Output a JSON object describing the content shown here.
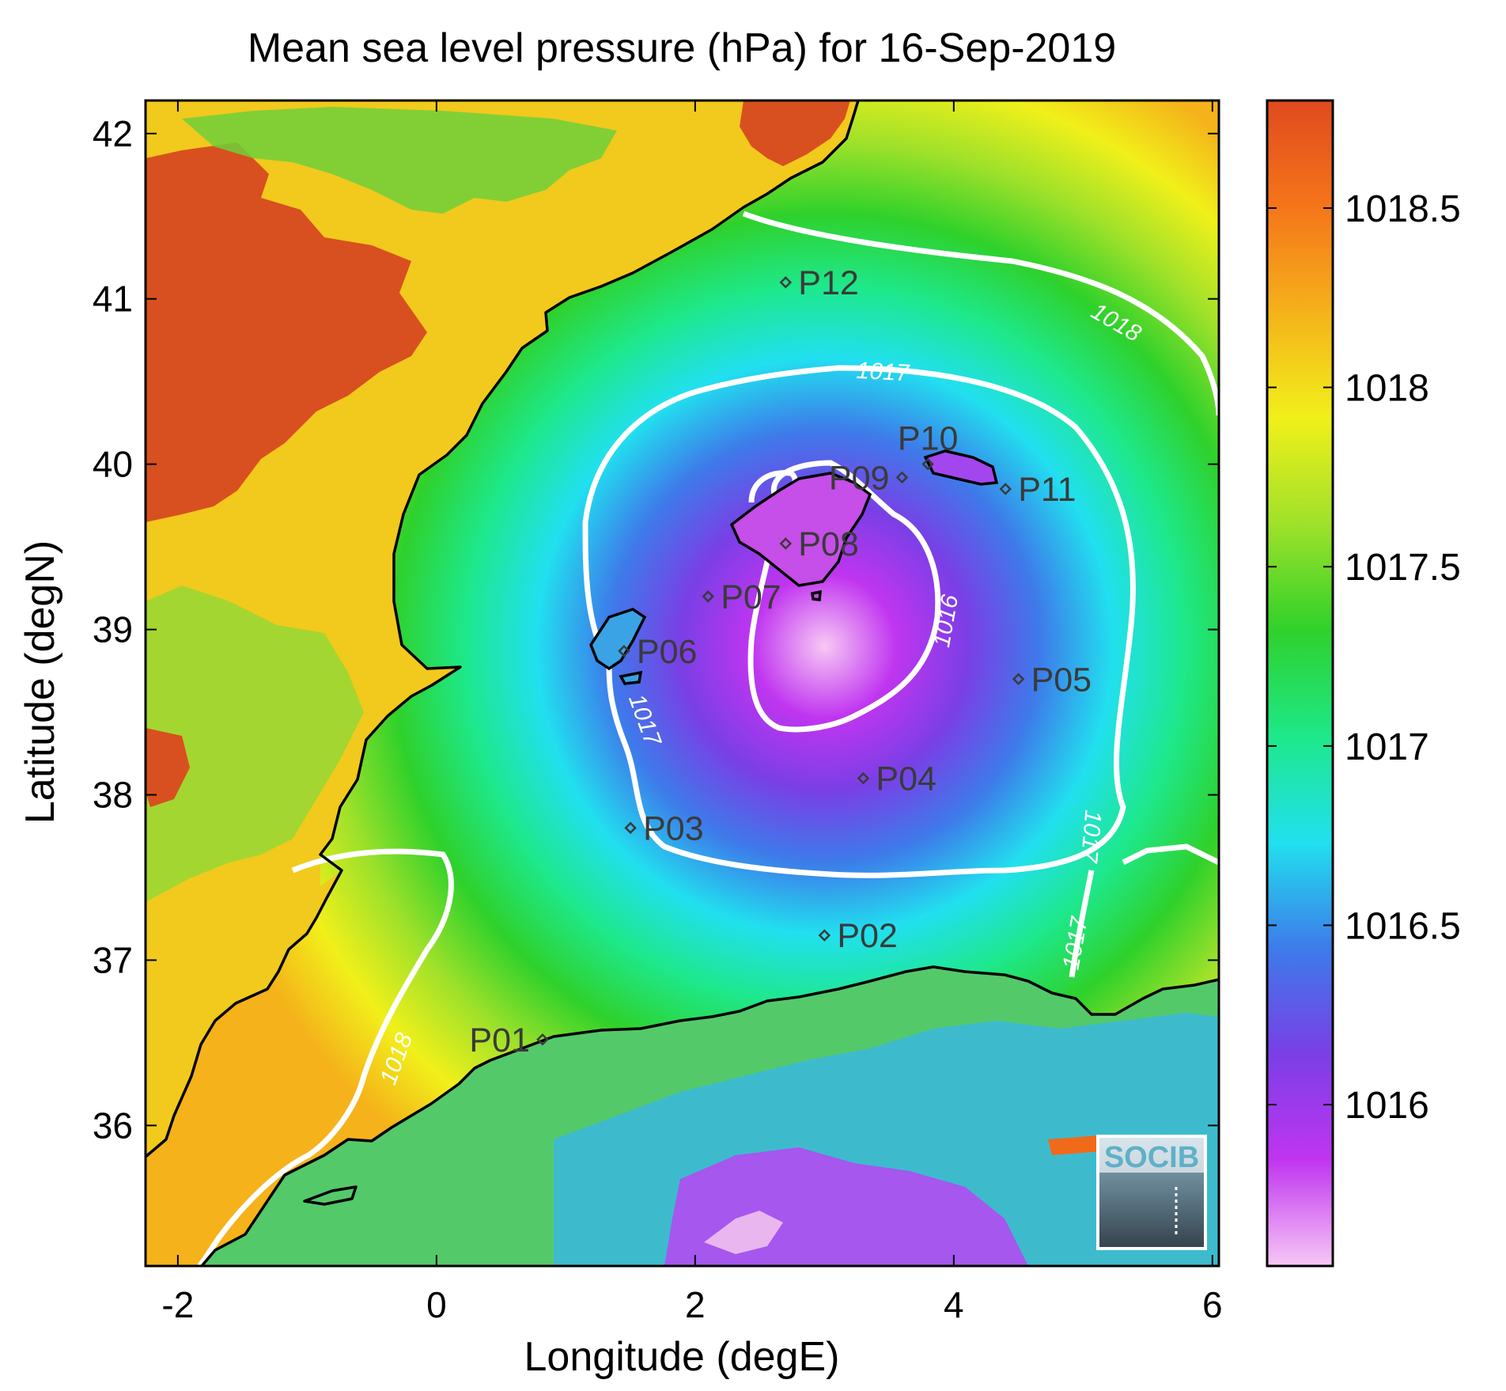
{
  "map": {
    "title": "Mean sea level pressure (hPa) for 16-Sep-2019",
    "xlabel": "Longitude (degE)",
    "ylabel": "Latitude (degN)",
    "x_range": [
      -2.25,
      6.05
    ],
    "y_range": [
      35.15,
      42.2
    ],
    "x_ticks": [
      -2,
      0,
      2,
      4,
      6
    ],
    "y_ticks": [
      36,
      37,
      38,
      39,
      40,
      41,
      42
    ],
    "pressure_low_center": {
      "lon": 3.0,
      "lat": 38.9,
      "value": 1015.6
    },
    "colorbar": {
      "range": [
        1015.55,
        1018.8
      ],
      "ticks": [
        "1016",
        "1016.5",
        "1017",
        "1017.5",
        "1018",
        "1018.5"
      ],
      "colors": [
        "#f7c8f5",
        "#c035f0",
        "#7a3fe6",
        "#3d7bea",
        "#21e0ef",
        "#1ee88a",
        "#2fd12b",
        "#9fe12a",
        "#f1f01a",
        "#f5b21a",
        "#f5751a",
        "#e04a1e"
      ]
    },
    "contour_labels": [
      {
        "text": "1016",
        "lon": 3.95,
        "lat": 39.05,
        "angle": -80
      },
      {
        "text": "1017",
        "lon": 3.45,
        "lat": 40.55,
        "angle": 3
      },
      {
        "text": "1017",
        "lon": 1.6,
        "lat": 38.45,
        "angle": 70
      },
      {
        "text": "1017",
        "lon": 5.05,
        "lat": 37.75,
        "angle": 95
      },
      {
        "text": "1017",
        "lon": 4.95,
        "lat": 37.1,
        "angle": -80
      },
      {
        "text": "1018",
        "lon": 5.25,
        "lat": 40.85,
        "angle": 30
      },
      {
        "text": "1018",
        "lon": -0.3,
        "lat": 36.4,
        "angle": -70
      }
    ],
    "stations": [
      {
        "label": "P01",
        "lon": 0.82,
        "lat": 36.52,
        "side": "left"
      },
      {
        "label": "P02",
        "lon": 3.0,
        "lat": 37.15,
        "side": "right"
      },
      {
        "label": "P03",
        "lon": 1.5,
        "lat": 37.8,
        "side": "right"
      },
      {
        "label": "P04",
        "lon": 3.3,
        "lat": 38.1,
        "side": "right"
      },
      {
        "label": "P05",
        "lon": 4.5,
        "lat": 38.7,
        "side": "right"
      },
      {
        "label": "P06",
        "lon": 1.45,
        "lat": 38.87,
        "side": "right"
      },
      {
        "label": "P07",
        "lon": 2.1,
        "lat": 39.2,
        "side": "right"
      },
      {
        "label": "P08",
        "lon": 2.7,
        "lat": 39.52,
        "side": "right"
      },
      {
        "label": "P09",
        "lon": 3.6,
        "lat": 39.92,
        "side": "left"
      },
      {
        "label": "P10",
        "lon": 3.8,
        "lat": 40.0,
        "side": "above"
      },
      {
        "label": "P11",
        "lon": 4.4,
        "lat": 39.85,
        "side": "right"
      },
      {
        "label": "P12",
        "lon": 2.7,
        "lat": 41.1,
        "side": "right"
      }
    ],
    "logo": {
      "text": "SOCIB",
      "icon": "socib-logo"
    }
  }
}
